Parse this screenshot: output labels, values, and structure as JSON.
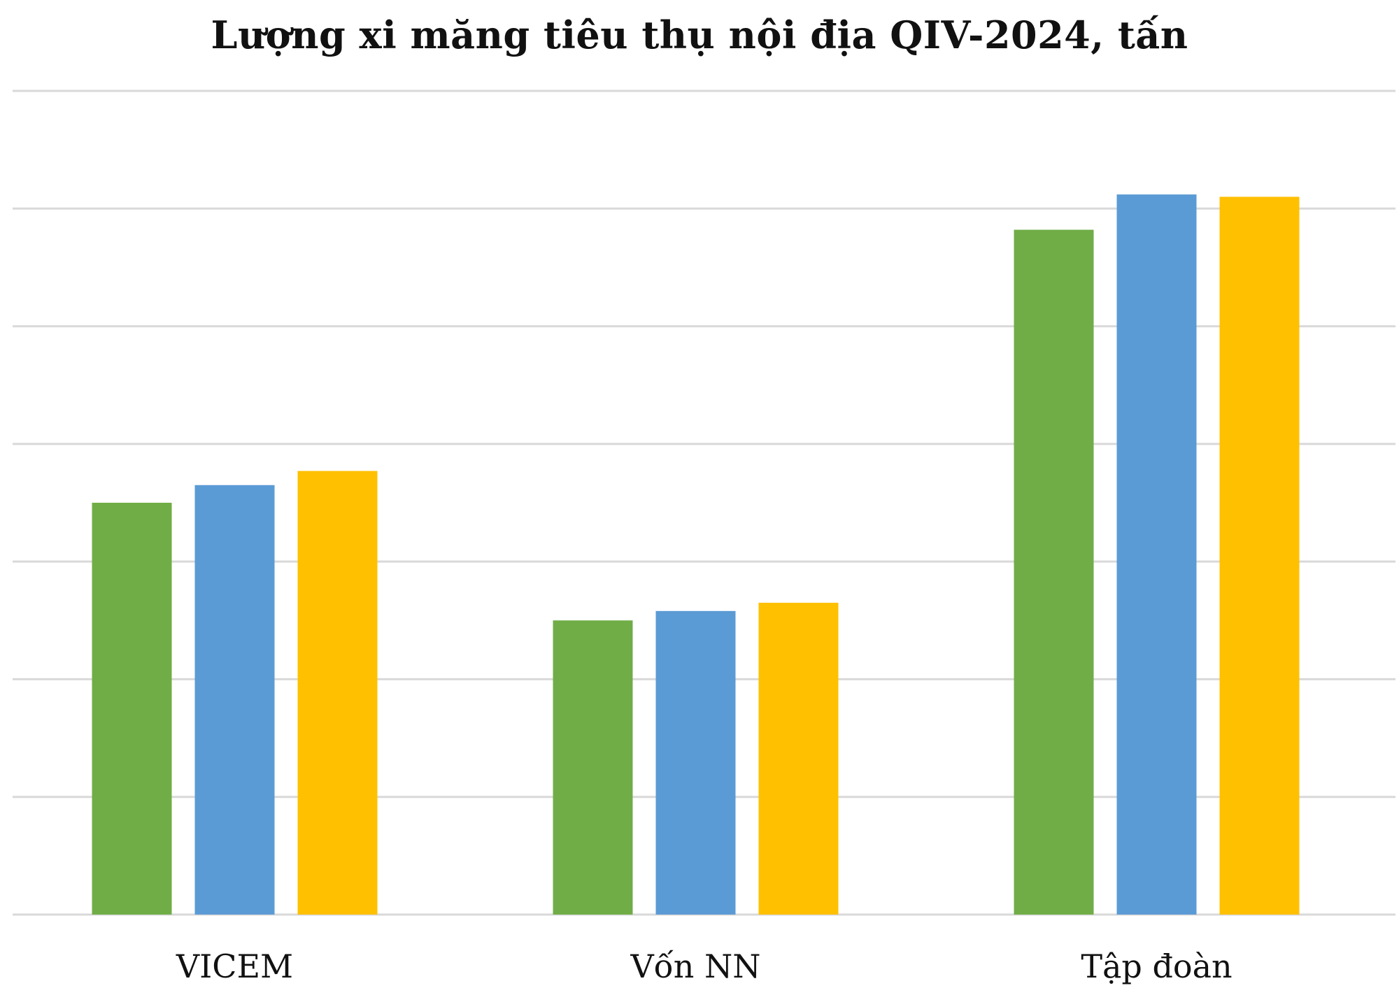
{
  "chart_data": {
    "type": "bar",
    "title": "Lượng xi măng tiêu thụ nội địa QIV-2024, tấn",
    "xlabel": "",
    "ylabel": "",
    "categories": [
      "VICEM",
      "Vốn NN",
      "Tập đoàn"
    ],
    "series": [
      {
        "color": "#70AD47",
        "values": [
          3.5,
          2.5,
          5.82
        ]
      },
      {
        "color": "#5B9BD5",
        "values": [
          3.65,
          2.58,
          6.12
        ]
      },
      {
        "color": "#FFC000",
        "values": [
          3.77,
          2.65,
          6.1
        ]
      }
    ],
    "ylim": [
      0,
      7
    ],
    "gridlines": 7,
    "grid": true,
    "legend": "none",
    "y_tick_labels_visible": false
  }
}
